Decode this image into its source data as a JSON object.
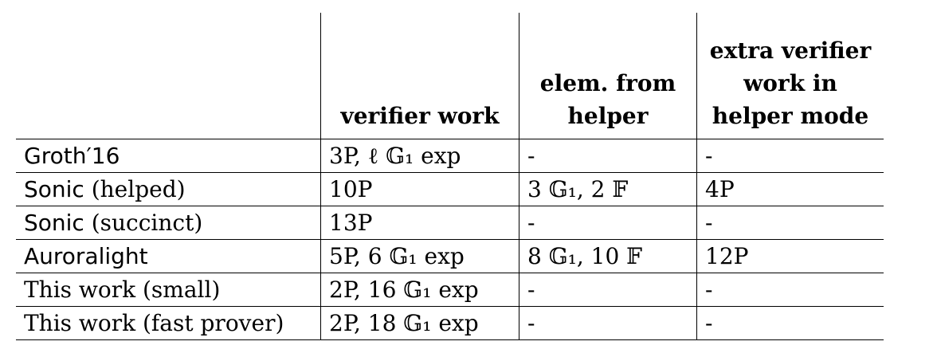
{
  "table": {
    "headers": [
      "",
      "verifier work",
      "elem. from helper",
      "extra verifier work in helper mode"
    ],
    "rows": [
      {
        "scheme_sans": "Groth′16",
        "scheme_serif": "",
        "verifier_work": "3P, ℓ 𝔾₁ exp",
        "elem_from_helper": "-",
        "extra_work": "-"
      },
      {
        "scheme_sans": "Sonic",
        "scheme_serif": " (helped)",
        "verifier_work": "10P",
        "elem_from_helper": "3 𝔾₁, 2 𝔽",
        "extra_work": "4P"
      },
      {
        "scheme_sans": "Sonic",
        "scheme_serif": " (succinct)",
        "verifier_work": "13P",
        "elem_from_helper": "-",
        "extra_work": "-"
      },
      {
        "scheme_sans": "Auroralight",
        "scheme_serif": "",
        "verifier_work": "5P, 6 𝔾₁ exp",
        "elem_from_helper": "8 𝔾₁, 10 𝔽",
        "extra_work": "12P"
      },
      {
        "scheme_sans": "",
        "scheme_serif": "This work (small)",
        "verifier_work": "2P, 16 𝔾₁ exp",
        "elem_from_helper": "-",
        "extra_work": "-"
      },
      {
        "scheme_sans": "",
        "scheme_serif": "This work (fast prover)",
        "verifier_work": "2P, 18 𝔾₁ exp",
        "elem_from_helper": "-",
        "extra_work": "-"
      }
    ]
  }
}
